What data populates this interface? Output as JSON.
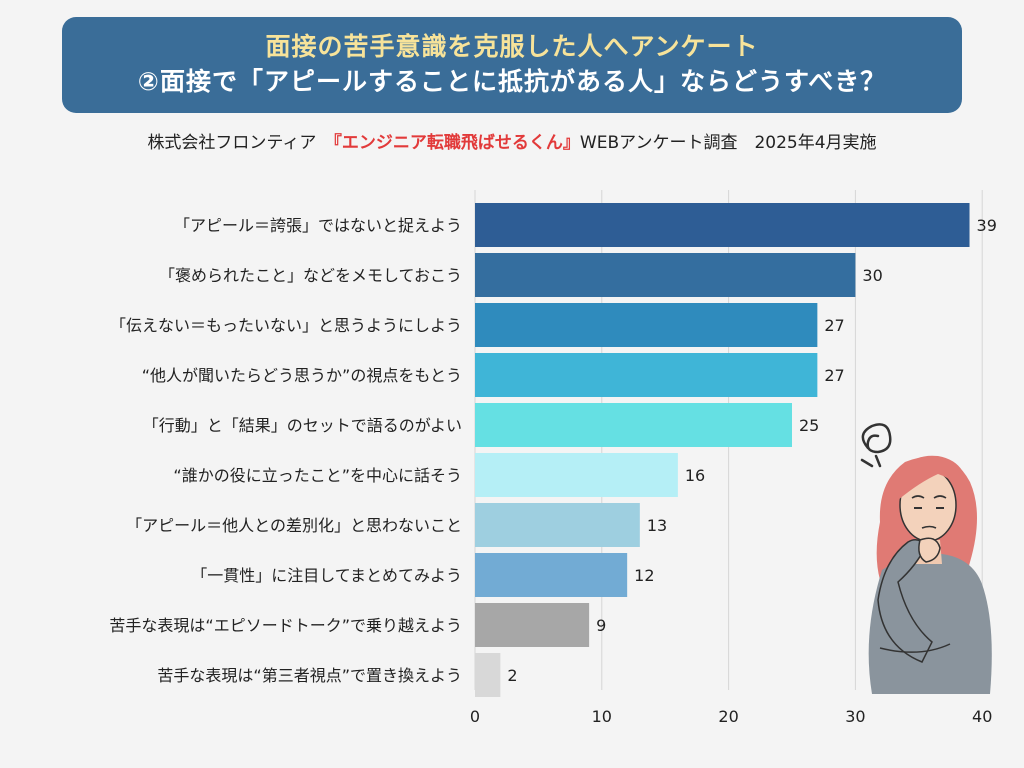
{
  "header": {
    "title_line1": "面接の苦手意識を克服した人へアンケート",
    "title_line2": "②面接で「アピールすることに抵抗がある人」ならどうすべき？",
    "subtitle_company": "株式会社フロンティア",
    "subtitle_service": "『エンジニア転職飛ばせるくん』",
    "subtitle_survey": "WEBアンケート調査",
    "subtitle_date": "2025年4月実施"
  },
  "chart_data": {
    "type": "bar",
    "orientation": "horizontal",
    "categories": [
      "「アピール＝誇張」ではないと捉えよう",
      "「褒められたこと」などをメモしておこう",
      "「伝えない＝もったいない」と思うようにしよう",
      "“他人が聞いたらどう思うか”の視点をもとう",
      "「行動」と「結果」のセットで語るのがよい",
      "“誰かの役に立ったこと”を中心に話そう",
      "「アピール＝他人との差別化」と思わないこと",
      "「一貫性」に注目してまとめてみよう",
      "苦手な表現は“エピソードトーク”で乗り越えよう",
      "苦手な表現は“第三者視点”で置き換えよう"
    ],
    "values": [
      39,
      30,
      27,
      27,
      25,
      16,
      13,
      12,
      9,
      2
    ],
    "colors": [
      "#2e5d95",
      "#346e9f",
      "#2f8bbd",
      "#3fb5d7",
      "#65e0e3",
      "#b5eff6",
      "#9ecfe0",
      "#72abd4",
      "#a7a7a7",
      "#d8d8d8"
    ],
    "xticks": [
      0,
      10,
      20,
      30,
      40
    ],
    "xlim": [
      0,
      40
    ],
    "grid": true,
    "title": "②面接で「アピールすることに抵抗がある人」ならどうすべき？"
  },
  "colors": {
    "banner_bg": "#3a6d98",
    "banner_line1": "#f7e39a",
    "accent_red": "#e23a3a",
    "grid": "#d6d6d6"
  },
  "illustration": {
    "icon": "thinking-woman-icon",
    "scribble_icon": "confused-scribble-icon"
  }
}
